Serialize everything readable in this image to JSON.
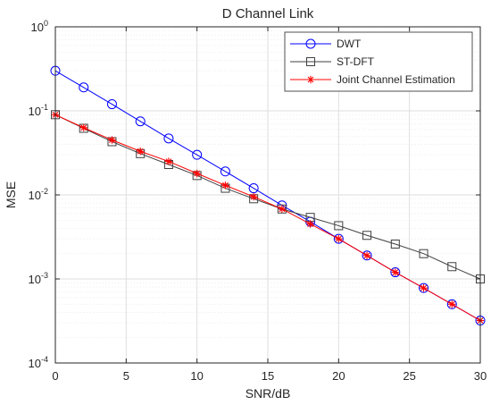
{
  "chart_data": {
    "type": "line",
    "title": "D Channel Link",
    "xlabel": "SNR/dB",
    "ylabel": "MSE",
    "xlim": [
      0,
      30
    ],
    "ylim": [
      0.0001,
      1
    ],
    "y_scale": "log",
    "grid": true,
    "legend_position": "top-right",
    "x_ticks": [
      {
        "value": 0,
        "label": "0"
      },
      {
        "value": 5,
        "label": "5"
      },
      {
        "value": 10,
        "label": "10"
      },
      {
        "value": 15,
        "label": "15"
      },
      {
        "value": 20,
        "label": "20"
      },
      {
        "value": 25,
        "label": "25"
      },
      {
        "value": 30,
        "label": "30"
      }
    ],
    "y_ticks": [
      {
        "value": 0.0001,
        "base": "10",
        "exp": "-4"
      },
      {
        "value": 0.001,
        "base": "10",
        "exp": "-3"
      },
      {
        "value": 0.01,
        "base": "10",
        "exp": "-2"
      },
      {
        "value": 0.1,
        "base": "10",
        "exp": "-1"
      },
      {
        "value": 1,
        "base": "10",
        "exp": "0"
      }
    ],
    "x": [
      0,
      2,
      4,
      6,
      8,
      10,
      12,
      14,
      16,
      18,
      20,
      22,
      24,
      26,
      28,
      30
    ],
    "series": [
      {
        "name": "DWT",
        "color": "#0000ff",
        "marker": "circle",
        "values": [
          0.3,
          0.19,
          0.12,
          0.075,
          0.047,
          0.03,
          0.019,
          0.012,
          0.0075,
          0.0048,
          0.003,
          0.0019,
          0.0012,
          0.00078,
          0.0005,
          0.00032
        ]
      },
      {
        "name": "ST-DFT",
        "color": "#404040",
        "marker": "square",
        "values": [
          0.09,
          0.062,
          0.043,
          0.031,
          0.023,
          0.017,
          0.012,
          0.009,
          0.0068,
          0.0054,
          0.0043,
          0.0033,
          0.0026,
          0.002,
          0.0014,
          0.001
        ]
      },
      {
        "name": "Joint Channel Estimation",
        "color": "#ff0000",
        "marker": "asterisk",
        "values": [
          0.09,
          0.063,
          0.045,
          0.033,
          0.025,
          0.018,
          0.013,
          0.0095,
          0.0068,
          0.0045,
          0.003,
          0.0019,
          0.0012,
          0.00078,
          0.0005,
          0.00032
        ]
      }
    ]
  }
}
